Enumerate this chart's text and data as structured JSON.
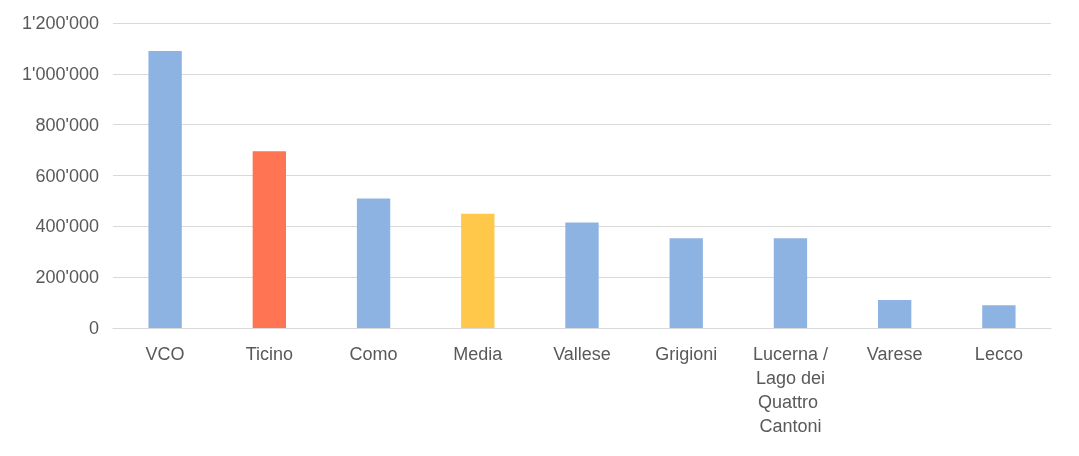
{
  "chart_data": {
    "type": "bar",
    "categories": [
      "VCO",
      "Ticino",
      "Como",
      "Media",
      "Vallese",
      "Grigioni",
      "Lucerna / Lago dei Quattro Cantoni",
      "Varese",
      "Lecco"
    ],
    "values": [
      1090000,
      695000,
      510000,
      450000,
      415000,
      353000,
      353000,
      110000,
      90000
    ],
    "colors": [
      "#8db3e2",
      "#ff7452",
      "#8db3e2",
      "#ffc84a",
      "#8db3e2",
      "#8db3e2",
      "#8db3e2",
      "#8db3e2",
      "#8db3e2"
    ],
    "ylim": [
      0,
      1200000
    ],
    "yticks": [
      {
        "value": 0,
        "label": "0"
      },
      {
        "value": 200000,
        "label": "200'000"
      },
      {
        "value": 400000,
        "label": "400'000"
      },
      {
        "value": 600000,
        "label": "600'000"
      },
      {
        "value": 800000,
        "label": "800'000"
      },
      {
        "value": 1000000,
        "label": "1'000'000"
      },
      {
        "value": 1200000,
        "label": "1'200'000"
      }
    ],
    "grid": "y"
  }
}
